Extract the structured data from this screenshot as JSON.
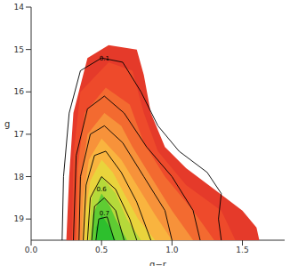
{
  "chart_data": {
    "type": "contour",
    "x_label": "g−r",
    "y_label": "g",
    "xlim": [
      0,
      1.8
    ],
    "xticks": [
      {
        "value": 0,
        "label": "0.0"
      },
      0.5,
      {
        "value": 1,
        "label": "1.0"
      },
      1.5
    ],
    "ylim": [
      19.5,
      14
    ],
    "yticks": [
      14,
      15,
      16,
      17,
      18,
      19
    ],
    "regions": [
      {
        "color": "#e53a2a",
        "x": [
          0.55,
          0.4,
          0.3,
          0.27,
          0.25,
          1.62,
          1.6,
          1.5,
          1.3,
          1.1,
          0.95,
          0.85,
          0.8,
          0.75
        ],
        "y": [
          14.9,
          15.2,
          16.5,
          18,
          19.5,
          19.5,
          19.2,
          18.8,
          18.3,
          17.8,
          17.3,
          16.5,
          15.6,
          15.0
        ]
      },
      {
        "color": "#ee4a2b",
        "x": [
          0.55,
          0.35,
          0.3,
          0.29,
          1.45,
          1.35,
          1.1,
          0.9,
          0.8,
          0.72
        ],
        "y": [
          15.3,
          16,
          17.5,
          19.5,
          19.5,
          18.8,
          18.2,
          17.4,
          16.5,
          15.5
        ]
      },
      {
        "color": "#f36a30",
        "x": [
          0.53,
          0.38,
          0.33,
          0.32,
          1.3,
          1.15,
          0.95,
          0.8,
          0.7
        ],
        "y": [
          15.9,
          16.5,
          17.8,
          19.5,
          19.5,
          18.8,
          18.0,
          17.2,
          16.3
        ]
      },
      {
        "color": "#f7923a",
        "x": [
          0.52,
          0.4,
          0.35,
          0.34,
          1.15,
          1.0,
          0.85,
          0.72,
          0.64
        ],
        "y": [
          16.5,
          17.0,
          18.2,
          19.5,
          19.5,
          18.8,
          18.0,
          17.3,
          16.8
        ]
      },
      {
        "color": "#f9b43f",
        "x": [
          0.5,
          0.41,
          0.37,
          0.36,
          1.0,
          0.88,
          0.75,
          0.64
        ],
        "y": [
          17.1,
          17.6,
          18.5,
          19.5,
          19.5,
          18.9,
          18.2,
          17.6
        ]
      },
      {
        "color": "#e9d43c",
        "x": [
          0.5,
          0.42,
          0.39,
          0.38,
          0.88,
          0.76,
          0.66,
          0.58
        ],
        "y": [
          17.6,
          18.1,
          18.8,
          19.5,
          19.5,
          19.0,
          18.4,
          17.9
        ]
      },
      {
        "color": "#b5d93a",
        "x": [
          0.5,
          0.43,
          0.41,
          0.78,
          0.68,
          0.6
        ],
        "y": [
          18.0,
          18.5,
          19.5,
          19.5,
          19.0,
          18.4
        ]
      },
      {
        "color": "#5fcc33",
        "x": [
          0.5,
          0.44,
          0.43,
          0.68,
          0.6,
          0.56
        ],
        "y": [
          18.4,
          18.9,
          19.5,
          19.5,
          19.0,
          18.7
        ]
      },
      {
        "color": "#2dbf2d",
        "x": [
          0.5,
          0.46,
          0.46,
          0.6,
          0.56
        ],
        "y": [
          18.9,
          19.2,
          19.5,
          19.5,
          19.2
        ]
      }
    ],
    "contours": [
      {
        "label": "0.1",
        "label_x": 0.52,
        "label_y": 15.2,
        "x": [
          0.22,
          0.23,
          0.27,
          0.35,
          0.5,
          0.65,
          0.78,
          0.9,
          1.05,
          1.25,
          1.35,
          1.33,
          1.35
        ],
        "y": [
          19.5,
          18,
          16.5,
          15.5,
          15.2,
          15.3,
          16,
          16.8,
          17.4,
          17.9,
          18.4,
          19.0,
          19.5
        ]
      },
      {
        "x": [
          0.3,
          0.32,
          0.4,
          0.52,
          0.66,
          0.82,
          1.0,
          1.15,
          1.2
        ],
        "y": [
          19.5,
          17.5,
          16.4,
          16.1,
          16.5,
          17.3,
          18.0,
          18.8,
          19.5
        ]
      },
      {
        "x": [
          0.34,
          0.35,
          0.42,
          0.52,
          0.65,
          0.8,
          0.95,
          1.0
        ],
        "y": [
          19.5,
          18,
          17.0,
          16.8,
          17.2,
          18.0,
          18.8,
          19.5
        ]
      },
      {
        "x": [
          0.37,
          0.39,
          0.45,
          0.53,
          0.64,
          0.75,
          0.85
        ],
        "y": [
          19.5,
          18.2,
          17.5,
          17.4,
          17.9,
          18.6,
          19.5
        ]
      },
      {
        "x": [
          0.4,
          0.42,
          0.5,
          0.6,
          0.7,
          0.75
        ],
        "y": [
          19.5,
          18.5,
          18.0,
          18.3,
          19.0,
          19.5
        ]
      },
      {
        "label": "0.6",
        "label_x": 0.5,
        "label_y": 18.3,
        "x": [
          0.43,
          0.45,
          0.52,
          0.6,
          0.66
        ],
        "y": [
          19.5,
          18.7,
          18.5,
          18.8,
          19.5
        ]
      },
      {
        "label": "0.7",
        "label_x": 0.52,
        "label_y": 18.85,
        "x": [
          0.46,
          0.48,
          0.54,
          0.59
        ],
        "y": [
          19.5,
          19.0,
          18.95,
          19.5
        ]
      }
    ]
  }
}
